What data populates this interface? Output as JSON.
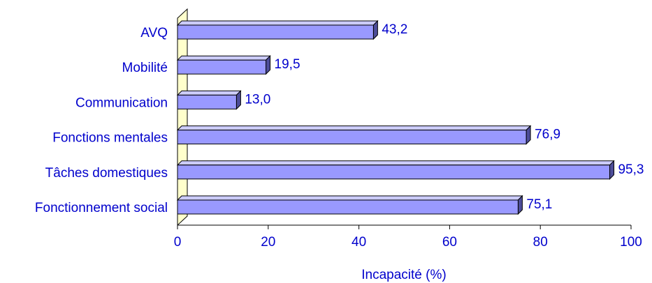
{
  "chart_data": {
    "type": "bar",
    "orientation": "horizontal",
    "categories": [
      "AVQ",
      "Mobilité",
      "Communication",
      "Fonctions mentales",
      "Tâches domestiques",
      "Fonctionnement social"
    ],
    "values": [
      43.2,
      19.5,
      13.0,
      76.9,
      95.3,
      75.1
    ],
    "value_labels": [
      "43,2",
      "19,5",
      "13,0",
      "76,9",
      "95,3",
      "75,1"
    ],
    "xlabel": "Incapacité (%)",
    "ylabel": "",
    "xlim": [
      0,
      100
    ],
    "xticks": [
      0,
      20,
      40,
      60,
      80,
      100
    ],
    "xtick_labels": [
      "0",
      "20",
      "40",
      "60",
      "80",
      "100"
    ],
    "grid": false,
    "style": "3d",
    "colors": {
      "bar_front": "#9999ff",
      "bar_top": "#ccccff",
      "bar_side": "#4d4d99",
      "wall": "#ffffcc",
      "text": "#0000cc",
      "axis": "#000000"
    }
  }
}
